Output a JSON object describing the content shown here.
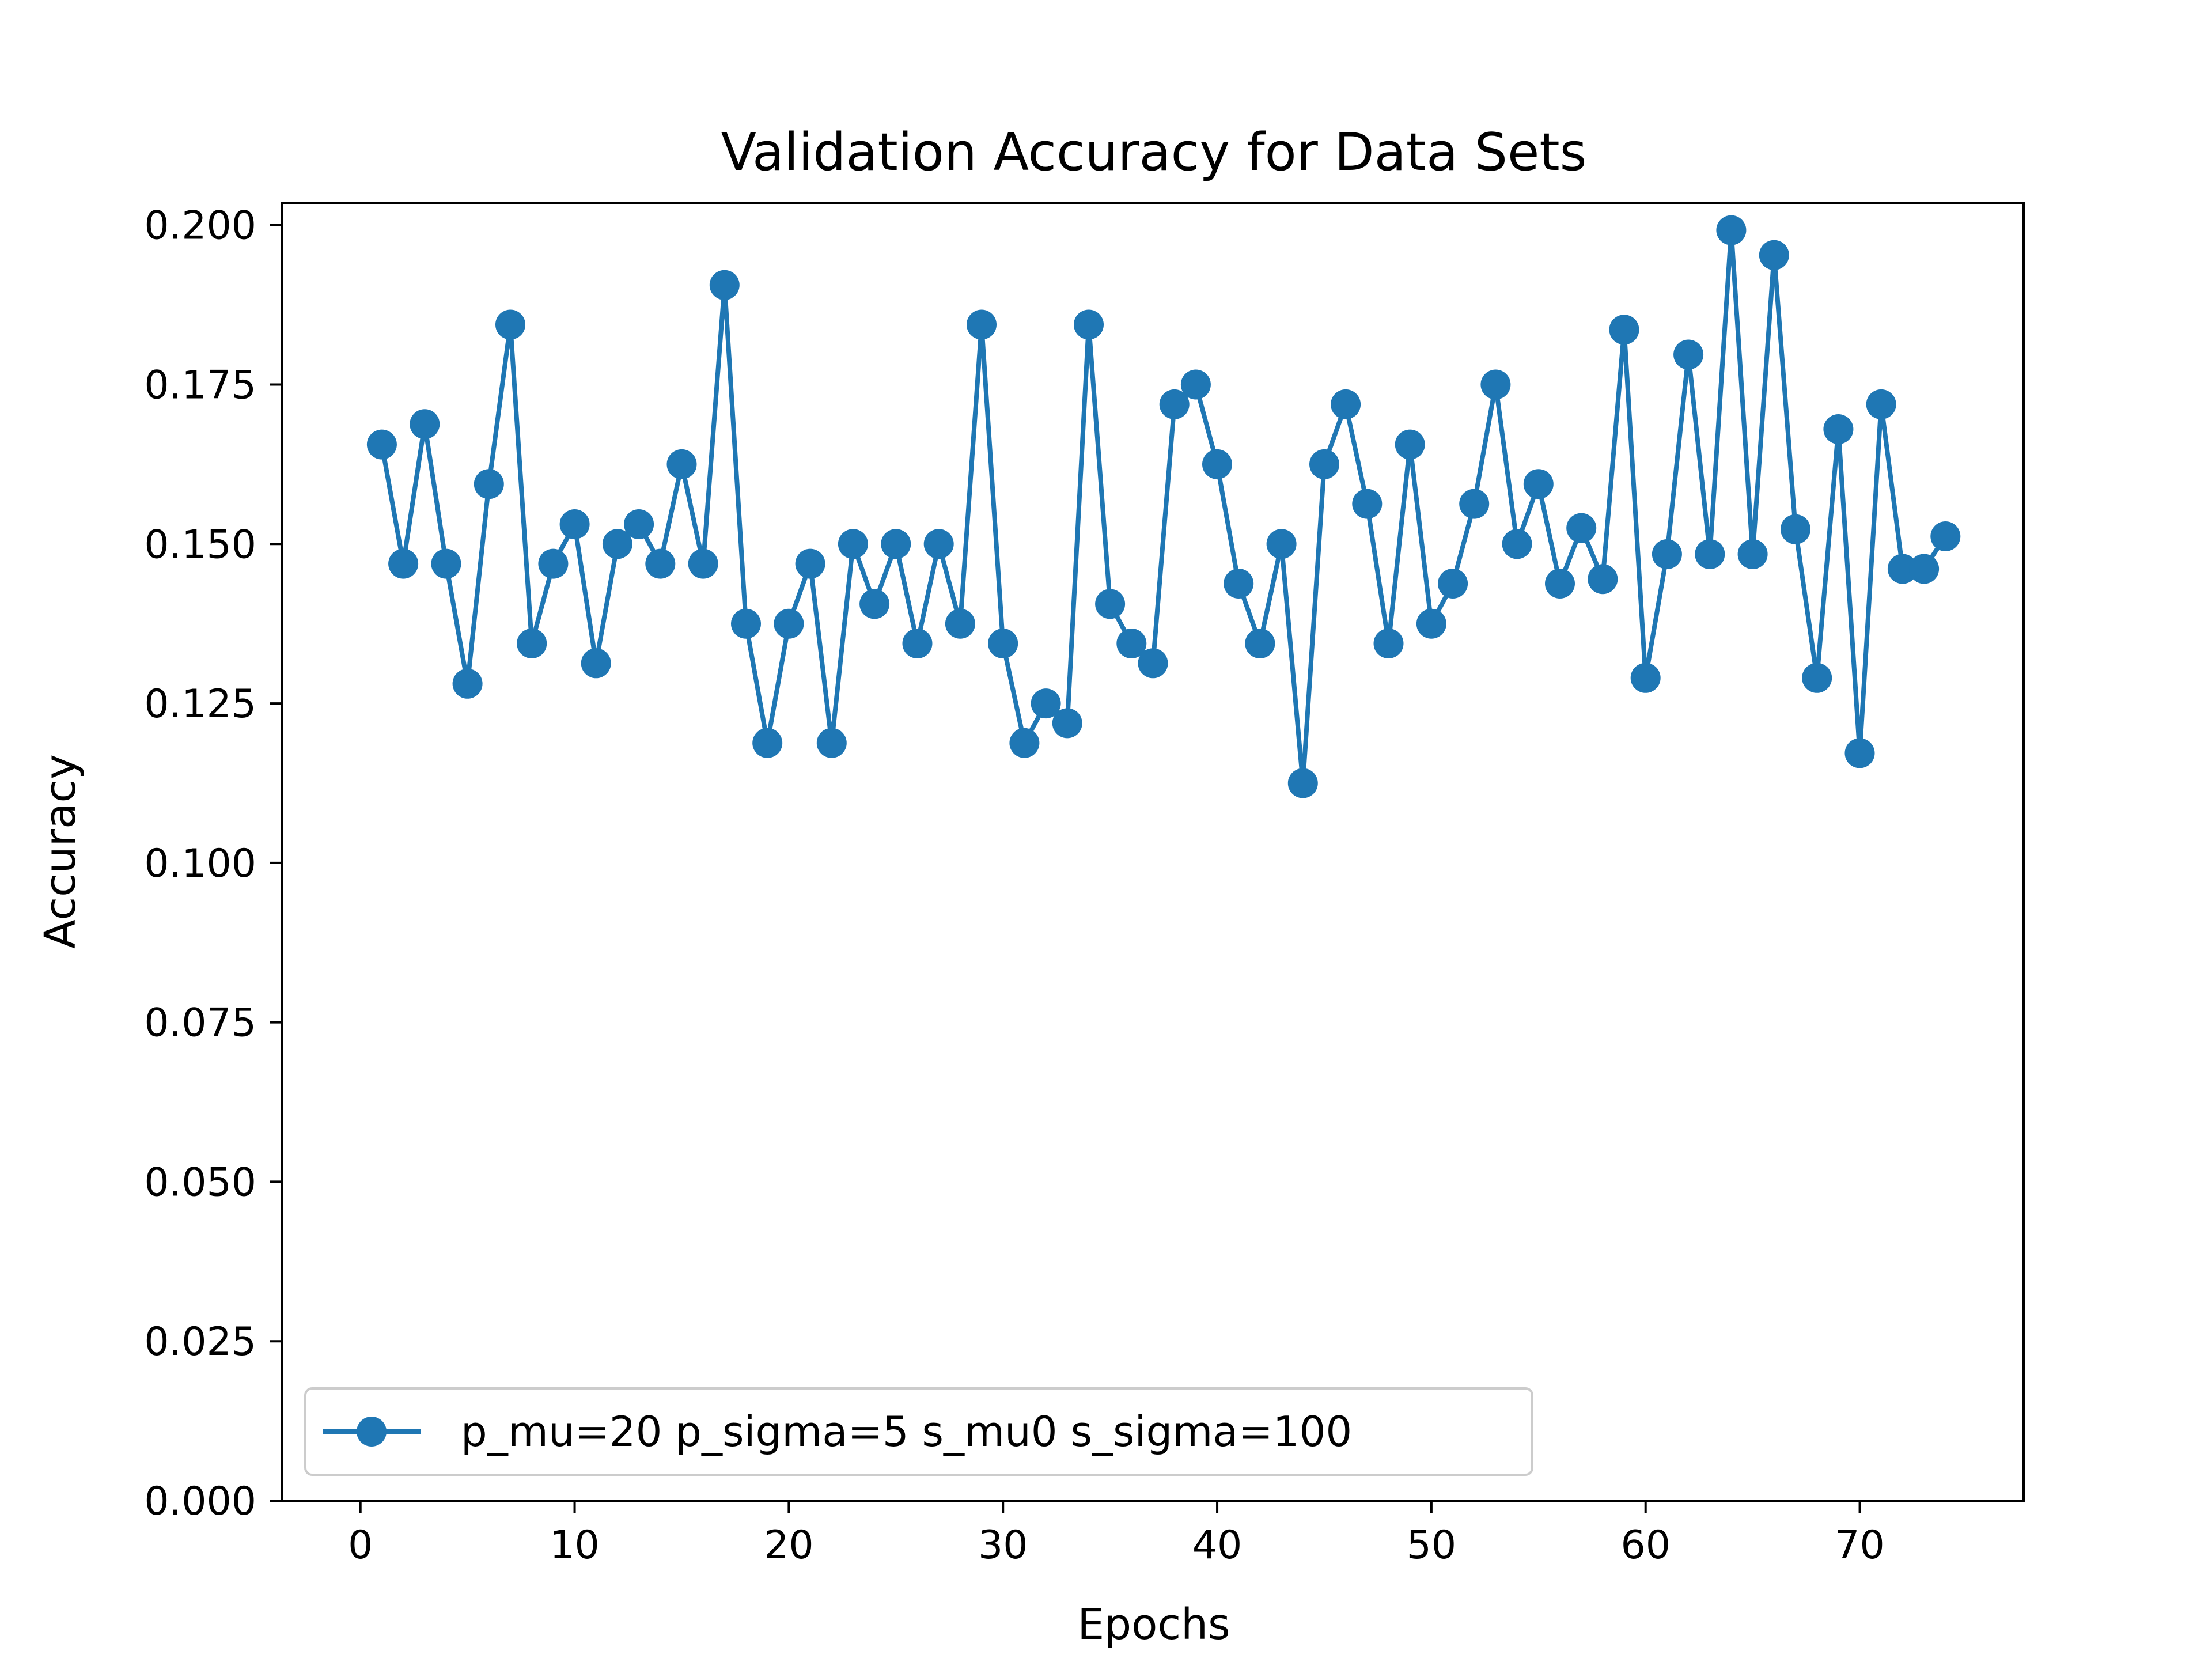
{
  "chart_data": {
    "type": "line",
    "title": "Validation Accuracy for Data Sets",
    "xlabel": "Epochs",
    "ylabel": "Accuracy",
    "xlim": [
      -3.65,
      77.65
    ],
    "ylim": [
      0.0,
      0.2035
    ],
    "xticks": [
      0,
      10,
      20,
      30,
      40,
      50,
      60,
      70
    ],
    "xtick_labels": [
      "0",
      "10",
      "20",
      "30",
      "40",
      "50",
      "60",
      "70"
    ],
    "yticks": [
      0.0,
      0.025,
      0.05,
      0.075,
      0.1,
      0.125,
      0.15,
      0.175,
      0.2
    ],
    "ytick_labels": [
      "0.000",
      "0.025",
      "0.050",
      "0.075",
      "0.100",
      "0.125",
      "0.150",
      "0.175",
      "0.200"
    ],
    "grid": false,
    "legend_position": "lower-left",
    "series": [
      {
        "name": "p_mu=20 p_sigma=5 s_mu0 s_sigma=100",
        "color": "#1f77b4",
        "marker": "circle",
        "x": [
          1,
          2,
          3,
          4,
          5,
          6,
          7,
          8,
          9,
          10,
          11,
          12,
          13,
          14,
          15,
          16,
          17,
          18,
          19,
          20,
          21,
          22,
          23,
          24,
          25,
          26,
          27,
          28,
          29,
          30,
          31,
          32,
          33,
          34,
          35,
          36,
          37,
          38,
          39,
          40,
          41,
          42,
          43,
          44,
          45,
          46,
          47,
          48,
          49,
          50,
          51,
          52,
          53,
          54,
          55,
          56,
          57,
          58,
          59,
          60,
          61,
          62,
          63,
          64,
          65,
          66,
          67,
          68,
          69,
          70,
          71,
          72,
          73,
          74
        ],
        "y": [
          0.1656,
          0.1469,
          0.1688,
          0.1469,
          0.1281,
          0.1594,
          0.1844,
          0.1344,
          0.1469,
          0.1531,
          0.1313,
          0.15,
          0.1531,
          0.1469,
          0.1625,
          0.1469,
          0.1906,
          0.1375,
          0.1188,
          0.1375,
          0.1469,
          0.1188,
          0.15,
          0.1406,
          0.15,
          0.1344,
          0.15,
          0.1375,
          0.1844,
          0.1344,
          0.1188,
          0.125,
          0.1219,
          0.1844,
          0.1406,
          0.1344,
          0.1313,
          0.1719,
          0.175,
          0.1625,
          0.1438,
          0.1344,
          0.15,
          0.1125,
          0.1625,
          0.1719,
          0.1563,
          0.1344,
          0.1656,
          0.1375,
          0.1438,
          0.1563,
          0.175,
          0.15,
          0.1594,
          0.1438,
          0.1525,
          0.1445,
          0.1836,
          0.129,
          0.1484,
          0.1797,
          0.1484,
          0.1992,
          0.1484,
          0.1953,
          0.1523,
          0.129,
          0.168,
          0.1172,
          0.1719,
          0.1461,
          0.1461,
          0.1512
        ]
      }
    ]
  }
}
